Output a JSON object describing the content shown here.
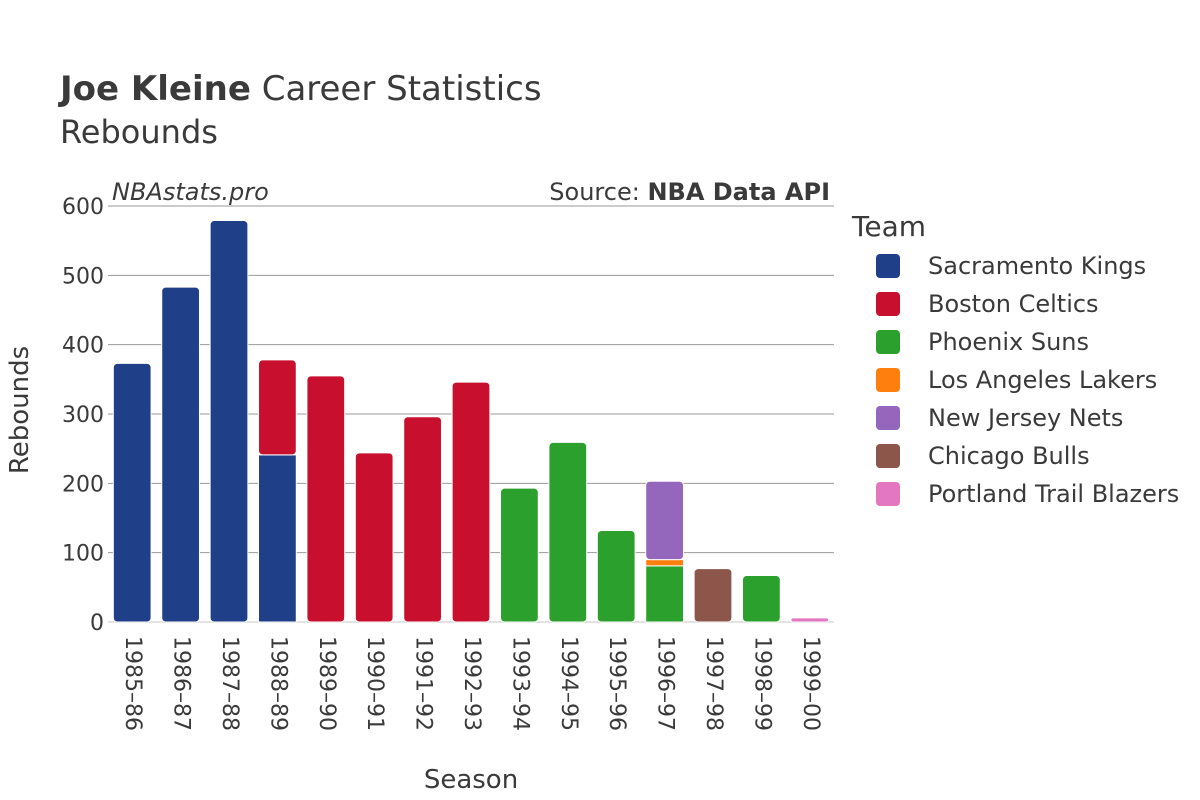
{
  "header": {
    "title_bold": "Joe Kleine",
    "title_rest": " Career Statistics",
    "subtitle": "Rebounds",
    "watermark": "NBAstats.pro",
    "source_prefix": "Source: ",
    "source_bold": "NBA Data API"
  },
  "legend": {
    "title": "Team",
    "items": [
      {
        "label": "Sacramento Kings",
        "color": "#1f3f88"
      },
      {
        "label": "Boston Celtics",
        "color": "#c8102e"
      },
      {
        "label": "Phoenix Suns",
        "color": "#2ca02c"
      },
      {
        "label": "Los Angeles Lakers",
        "color": "#ff7f0e"
      },
      {
        "label": "New Jersey Nets",
        "color": "#9467bd"
      },
      {
        "label": "Chicago Bulls",
        "color": "#8c564b"
      },
      {
        "label": "Portland Trail Blazers",
        "color": "#e377c2"
      }
    ]
  },
  "chart_data": {
    "type": "bar",
    "stacked": true,
    "title": "Joe Kleine Career Statistics",
    "subtitle": "Rebounds",
    "xlabel": "Season",
    "ylabel": "Rebounds",
    "ylim": [
      0,
      600
    ],
    "yticks": [
      0,
      100,
      200,
      300,
      400,
      500,
      600
    ],
    "grid": true,
    "legend_position": "right",
    "categories": [
      "1985–86",
      "1986–87",
      "1987–88",
      "1988–89",
      "1989–90",
      "1990–91",
      "1991–92",
      "1992–93",
      "1993–94",
      "1994–95",
      "1995–96",
      "1996–97",
      "1997–98",
      "1998–99",
      "1999–00"
    ],
    "series": [
      {
        "name": "Sacramento Kings",
        "values": [
          373,
          483,
          579,
          241,
          0,
          0,
          0,
          0,
          0,
          0,
          0,
          0,
          0,
          0,
          0
        ]
      },
      {
        "name": "Boston Celtics",
        "values": [
          0,
          0,
          0,
          137,
          355,
          244,
          296,
          346,
          0,
          0,
          0,
          0,
          0,
          0,
          0
        ]
      },
      {
        "name": "Phoenix Suns",
        "values": [
          0,
          0,
          0,
          0,
          0,
          0,
          0,
          0,
          193,
          259,
          132,
          81,
          0,
          67,
          0
        ]
      },
      {
        "name": "Los Angeles Lakers",
        "values": [
          0,
          0,
          0,
          0,
          0,
          0,
          0,
          0,
          0,
          0,
          0,
          9,
          0,
          0,
          0
        ]
      },
      {
        "name": "New Jersey Nets",
        "values": [
          0,
          0,
          0,
          0,
          0,
          0,
          0,
          0,
          0,
          0,
          0,
          113,
          0,
          0,
          0
        ]
      },
      {
        "name": "Chicago Bulls",
        "values": [
          0,
          0,
          0,
          0,
          0,
          0,
          0,
          0,
          0,
          0,
          0,
          0,
          77,
          0,
          0
        ]
      },
      {
        "name": "Portland Trail Blazers",
        "values": [
          0,
          0,
          0,
          0,
          0,
          0,
          0,
          0,
          0,
          0,
          0,
          0,
          0,
          0,
          6
        ]
      }
    ]
  }
}
